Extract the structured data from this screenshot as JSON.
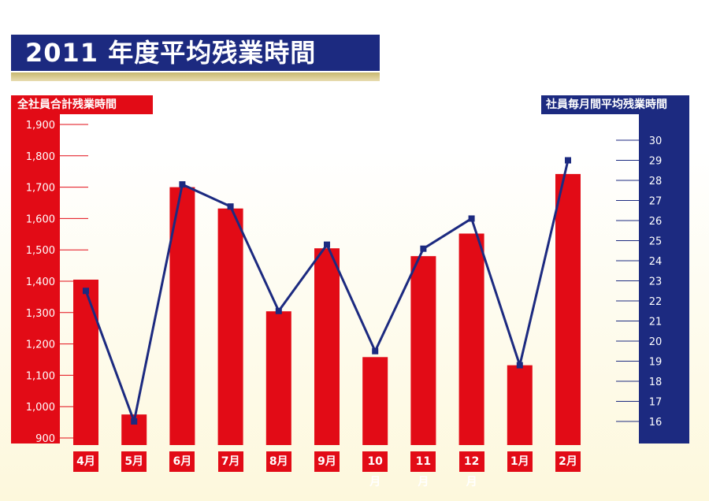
{
  "title": "2011 年度平均残業時間",
  "chart_data": {
    "type": "bar",
    "categories": [
      "4月",
      "5月",
      "6月",
      "7月",
      "8月",
      "9月",
      "10月",
      "11月",
      "12月",
      "1月",
      "2月"
    ],
    "series": [
      {
        "name": "全社員合計残業時間",
        "type": "bar",
        "axis": "left",
        "values": [
          1405,
          975,
          1700,
          1632,
          1304,
          1505,
          1158,
          1480,
          1552,
          1132,
          1742
        ]
      },
      {
        "name": "社員毎月間平均残業時間",
        "type": "line",
        "axis": "right",
        "values": [
          22.5,
          16.0,
          27.8,
          26.7,
          21.5,
          24.8,
          19.5,
          24.6,
          26.1,
          18.8,
          29.0
        ]
      }
    ],
    "left_axis": {
      "label": "全社員合計残業時間",
      "ylim": [
        900,
        1900
      ],
      "ticks": [
        "1,900",
        "1,800",
        "1,700",
        "1,600",
        "1,500",
        "1,400",
        "1,300",
        "1,200",
        "1,100",
        "1,000",
        "900"
      ],
      "tick_values": [
        1900,
        1800,
        1700,
        1600,
        1500,
        1400,
        1300,
        1200,
        1100,
        1000,
        900
      ]
    },
    "right_axis": {
      "label": "社員毎月間平均残業時間",
      "ylim": [
        16,
        30
      ],
      "ticks": [
        "30",
        "29",
        "28",
        "27",
        "26",
        "25",
        "24",
        "23",
        "22",
        "21",
        "20",
        "19",
        "18",
        "17",
        "16"
      ],
      "tick_values": [
        30,
        29,
        28,
        27,
        26,
        25,
        24,
        23,
        22,
        21,
        20,
        19,
        18,
        17,
        16
      ]
    },
    "grid": false,
    "colors": {
      "bar": "#e20b16",
      "line": "#1c2a80",
      "navy": "#1c2a80",
      "red": "#e20b16"
    }
  }
}
